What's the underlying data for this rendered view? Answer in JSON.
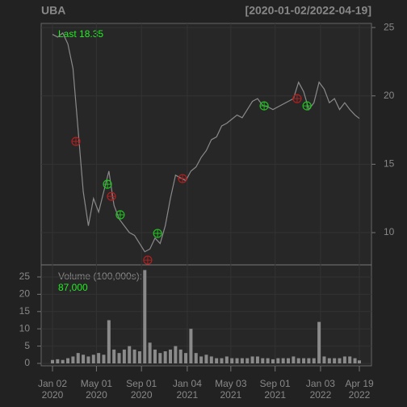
{
  "chart_data": {
    "type": "line",
    "title": "UBA",
    "subtitle": "[2020-01-02/2022-04-19]",
    "last_label": "Last 18.35",
    "volume_title": "Volume (100,000s):",
    "volume_last_label": "87,000",
    "x": [
      "2020-01-02",
      "2020-01-16",
      "2020-01-30",
      "2020-02-13",
      "2020-02-27",
      "2020-03-12",
      "2020-03-26",
      "2020-04-09",
      "2020-04-23",
      "2020-05-07",
      "2020-05-21",
      "2020-06-04",
      "2020-06-18",
      "2020-07-02",
      "2020-07-16",
      "2020-07-30",
      "2020-08-13",
      "2020-08-27",
      "2020-09-10",
      "2020-09-24",
      "2020-10-08",
      "2020-10-22",
      "2020-11-05",
      "2020-11-19",
      "2020-12-03",
      "2020-12-17",
      "2020-12-31",
      "2021-01-14",
      "2021-01-28",
      "2021-02-11",
      "2021-02-25",
      "2021-03-11",
      "2021-03-25",
      "2021-04-08",
      "2021-04-22",
      "2021-05-06",
      "2021-05-20",
      "2021-06-03",
      "2021-06-17",
      "2021-07-01",
      "2021-07-15",
      "2021-07-29",
      "2021-08-12",
      "2021-08-26",
      "2021-09-09",
      "2021-09-23",
      "2021-10-07",
      "2021-10-21",
      "2021-11-04",
      "2021-11-18",
      "2021-12-02",
      "2021-12-16",
      "2021-12-30",
      "2022-01-13",
      "2022-01-27",
      "2022-02-10",
      "2022-02-24",
      "2022-03-10",
      "2022-03-24",
      "2022-04-07",
      "2022-04-19"
    ],
    "series": [
      {
        "name": "UBA",
        "color": "#8a8a8a",
        "values": [
          24.5,
          24.3,
          24.6,
          23.8,
          22.0,
          17.5,
          13.0,
          10.5,
          12.5,
          11.5,
          13.0,
          14.5,
          12.0,
          11.0,
          10.5,
          10.0,
          9.8,
          9.2,
          8.6,
          8.8,
          9.6,
          9.2,
          10.5,
          12.5,
          14.2,
          14.0,
          13.8,
          14.5,
          14.8,
          15.5,
          16.0,
          16.8,
          17.0,
          17.8,
          18.0,
          18.3,
          18.6,
          18.4,
          19.0,
          19.6,
          19.8,
          19.3,
          19.2,
          19.0,
          19.2,
          19.4,
          19.6,
          19.8,
          21.0,
          20.3,
          19.0,
          19.5,
          21.0,
          20.5,
          19.5,
          19.8,
          19.0,
          19.5,
          19.0,
          18.6,
          18.35
        ]
      }
    ],
    "volume": {
      "color": "#8a8a8a",
      "values": [
        1,
        1.2,
        1,
        1.5,
        2,
        3,
        2.5,
        2,
        2.5,
        3,
        2.5,
        12.5,
        4,
        3,
        4,
        5,
        4,
        3.5,
        27,
        6,
        4,
        3,
        3.5,
        4,
        5,
        4,
        3,
        10,
        3,
        2,
        2.5,
        2,
        1.5,
        1.5,
        2,
        1.5,
        1.5,
        1.5,
        1.5,
        2,
        2,
        1.5,
        1.5,
        1.2,
        1.5,
        1.5,
        1.5,
        2,
        1.5,
        1.5,
        1.5,
        1.5,
        12,
        2,
        1.5,
        1.5,
        1.5,
        2,
        2,
        1.5,
        0.87
      ]
    },
    "markers": [
      {
        "x": "2020-03-06",
        "y": 16.67,
        "color": "#b02020"
      },
      {
        "x": "2020-05-31",
        "y": 13.54,
        "color": "#20c020"
      },
      {
        "x": "2020-06-11",
        "y": 12.65,
        "color": "#b02020"
      },
      {
        "x": "2020-07-05",
        "y": 11.3,
        "color": "#20c020"
      },
      {
        "x": "2020-09-18",
        "y": 7.99,
        "color": "#b02020"
      },
      {
        "x": "2020-10-15",
        "y": 9.94,
        "color": "#20c020"
      },
      {
        "x": "2020-12-22",
        "y": 13.95,
        "color": "#b02020"
      },
      {
        "x": "2021-08-02",
        "y": 19.27,
        "color": "#20c020"
      },
      {
        "x": "2021-10-31",
        "y": 19.8,
        "color": "#b02020"
      },
      {
        "x": "2021-11-27",
        "y": 19.27,
        "color": "#20c020"
      }
    ],
    "xlim": [
      "2020-01-02",
      "2022-04-19"
    ],
    "xticks": [
      {
        "value": "2020-01-02",
        "label": [
          "Jan 02",
          "2020"
        ]
      },
      {
        "value": "2020-05-01",
        "label": [
          "May 01",
          "2020"
        ]
      },
      {
        "value": "2020-09-01",
        "label": [
          "Sep 01",
          "2020"
        ]
      },
      {
        "value": "2021-01-04",
        "label": [
          "Jan 04",
          "2021"
        ]
      },
      {
        "value": "2021-05-03",
        "label": [
          "May 03",
          "2021"
        ]
      },
      {
        "value": "2021-09-01",
        "label": [
          "Sep 01",
          "2021"
        ]
      },
      {
        "value": "2022-01-03",
        "label": [
          "Jan 03",
          "2022"
        ]
      },
      {
        "value": "2022-04-19",
        "label": [
          "Apr 19",
          "2022"
        ]
      }
    ],
    "ylim": [
      7.64,
      25.3
    ],
    "yticks": [
      10,
      15,
      20,
      25
    ],
    "y2lim": [
      -0.7,
      28.5
    ],
    "y2ticks": [
      0,
      5,
      10,
      15,
      20,
      25
    ],
    "grid": true
  }
}
